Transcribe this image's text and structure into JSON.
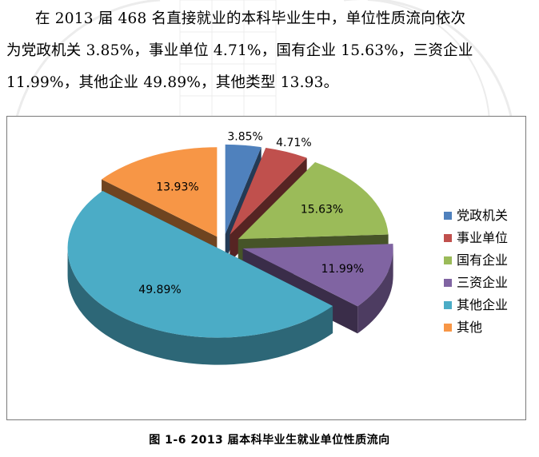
{
  "document": {
    "paragraph_lines": [
      "在 2013 届 468 名直接就业的本科毕业生中，单位性质流向依次",
      "为党政机关 3.85%，事业单位 4.71%，国有企业 15.63%，三资企业",
      "11.99%，其他企业 49.89%，其他类型 13.93。"
    ],
    "figure_caption": "图 1-6  2013 届本科毕业生就业单位性质流向"
  },
  "chart_data": {
    "type": "pie",
    "style": "3d-exploded",
    "categories": [
      "党政机关",
      "事业单位",
      "国有企业",
      "三资企业",
      "其他企业",
      "其他"
    ],
    "values": [
      3.85,
      4.71,
      15.63,
      11.99,
      49.89,
      13.93
    ],
    "labels": [
      "3.85%",
      "4.71%",
      "15.63%",
      "11.99%",
      "49.89%",
      "13.93%"
    ],
    "colors": [
      "#4f81bd",
      "#c0504d",
      "#9bbb59",
      "#8064a2",
      "#4bacc6",
      "#f79646"
    ],
    "legend_position": "right",
    "title": ""
  }
}
